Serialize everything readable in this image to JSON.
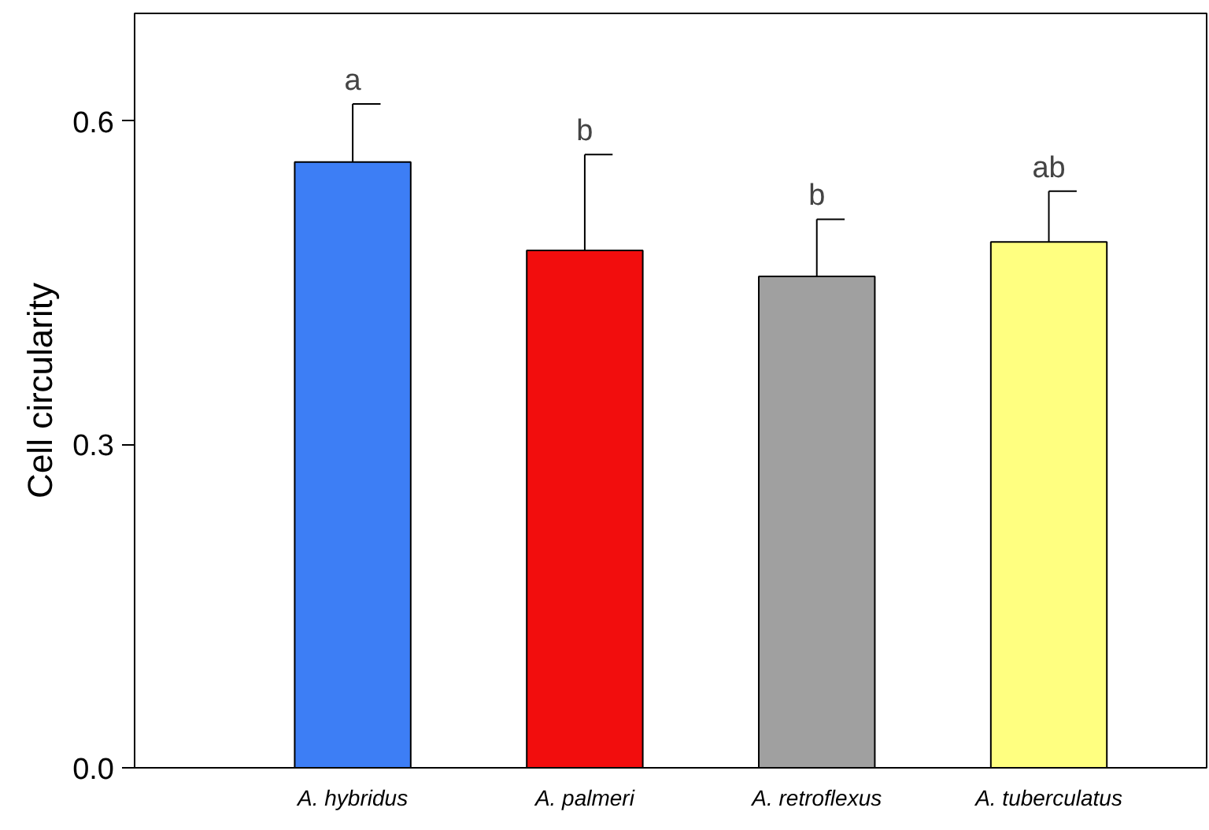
{
  "chart_data": {
    "type": "bar",
    "ylabel": "Cell circularity",
    "categories": [
      "A. hybridus",
      "A. palmeri",
      "A. retroflexus",
      "A. tuberculatus"
    ],
    "values": [
      0.562,
      0.48,
      0.456,
      0.488
    ],
    "colors": [
      "#3d7ef5",
      "#f20d0d",
      "#a0a0a0",
      "#ffff80"
    ],
    "errors": [
      [
        0.562,
        0.616
      ],
      [
        0.48,
        0.569
      ],
      [
        0.456,
        0.509
      ],
      [
        0.488,
        0.535
      ]
    ],
    "ylim": [
      0,
      0.7
    ],
    "yticks": [
      {
        "value": 0,
        "label": "0.0"
      },
      0.3,
      0.6
    ],
    "grid": false,
    "annotations": [
      {
        "text": "a",
        "x": "A. hybridus",
        "y": 0.616
      },
      {
        "text": "b",
        "x": "A. palmeri",
        "y": 0.569
      },
      {
        "text": "b",
        "x": "A. retroflexus",
        "y": 0.509
      },
      {
        "text": "ab",
        "x": "A. tuberculatus",
        "y": 0.535
      }
    ]
  }
}
